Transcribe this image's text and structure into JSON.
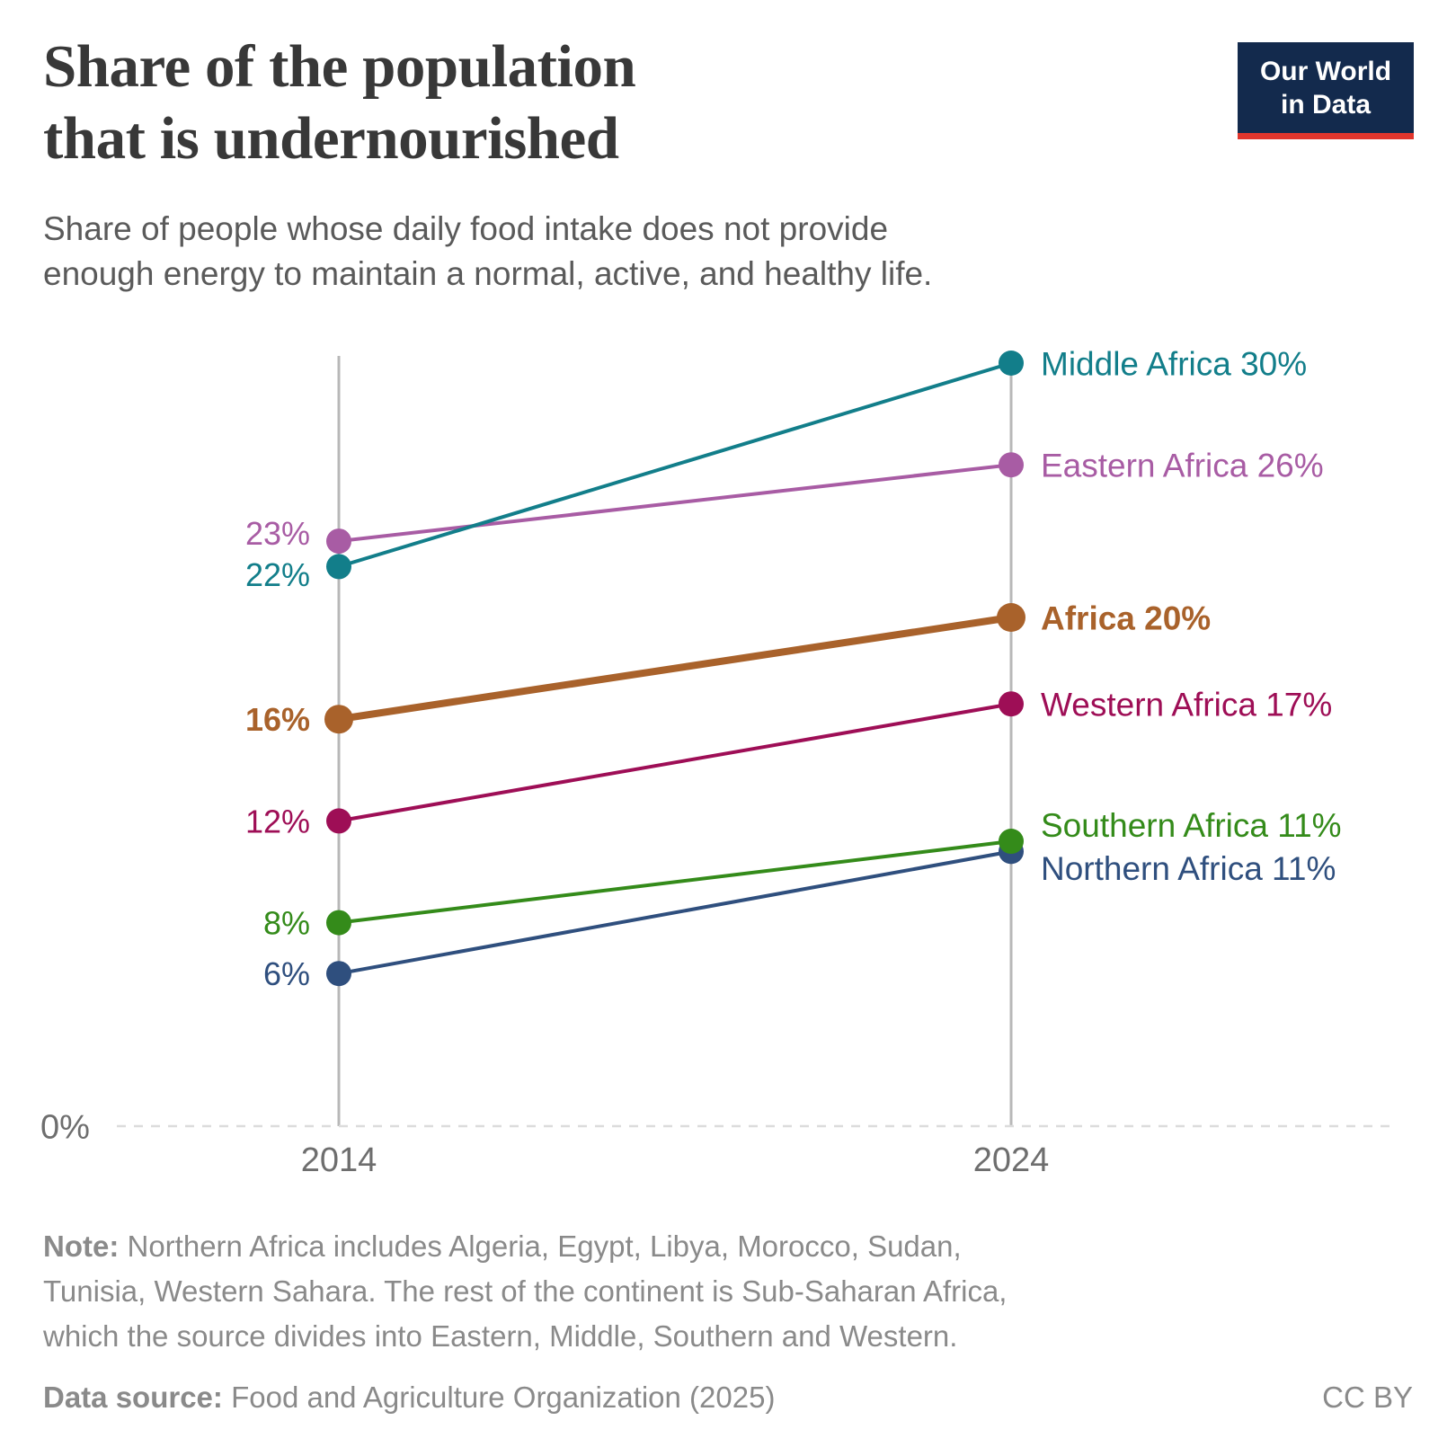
{
  "header": {
    "title_line1": "Share of the population",
    "title_line2": "that is undernourished",
    "subtitle_line1": "Share of people whose daily food intake does not provide",
    "subtitle_line2": "enough energy to maintain a normal, active, and healthy life.",
    "logo": {
      "line1": "Our World",
      "line2": "in Data",
      "bg_color": "#132a4d",
      "accent_color": "#e1362d"
    }
  },
  "chart_data": {
    "type": "line",
    "variant": "slope",
    "categories": [
      2014,
      2024
    ],
    "x_labels": [
      "2014",
      "2024"
    ],
    "ylim": [
      0,
      31
    ],
    "baseline_label": "0%",
    "grid": "baseline-dashed-only",
    "legend_position": "right-of-lines",
    "axis_color": "#b8b8b8",
    "baseline_color": "#dcdcdc",
    "tick_label_color": "#6e6e6e",
    "series": [
      {
        "name": "Eastern Africa",
        "values": [
          23,
          26
        ],
        "values_plot": [
          23,
          26
        ],
        "start_label": "23%",
        "end_label": "Eastern Africa 26%",
        "color": "#a85ca4",
        "emphasis": false
      },
      {
        "name": "Middle Africa",
        "values": [
          22,
          30
        ],
        "values_plot": [
          22,
          30
        ],
        "start_label": "22%",
        "end_label": "Middle Africa 30%",
        "color": "#127e8a",
        "emphasis": false
      },
      {
        "name": "Africa",
        "values": [
          16,
          20
        ],
        "values_plot": [
          16,
          20
        ],
        "start_label": "16%",
        "end_label": "Africa 20%",
        "color": "#a9622b",
        "emphasis": true
      },
      {
        "name": "Western Africa",
        "values": [
          12,
          17
        ],
        "values_plot": [
          12,
          16.6
        ],
        "start_label": "12%",
        "end_label": "Western Africa 17%",
        "color": "#9e0e56",
        "emphasis": false
      },
      {
        "name": "Northern Africa",
        "values": [
          6,
          11
        ],
        "values_plot": [
          6,
          10.8
        ],
        "start_label": "6%",
        "end_label": "Northern Africa 11%",
        "color": "#2f4f7e",
        "emphasis": false
      },
      {
        "name": "Southern Africa",
        "values": [
          8,
          11
        ],
        "values_plot": [
          8,
          11.2
        ],
        "start_label": "8%",
        "end_label": "Southern Africa 11%",
        "color": "#348b1a",
        "emphasis": false
      }
    ]
  },
  "footer": {
    "note_label": "Note:",
    "note_line1": "Northern Africa includes Algeria, Egypt, Libya, Morocco, Sudan,",
    "note_line2": "Tunisia, Western Sahara. The rest of the continent is Sub-Saharan Africa,",
    "note_line3": "which the source divides into Eastern, Middle, Southern and Western.",
    "source_label": "Data source:",
    "source_text": "Food and Agriculture Organization (2025)",
    "license": "CC BY"
  }
}
